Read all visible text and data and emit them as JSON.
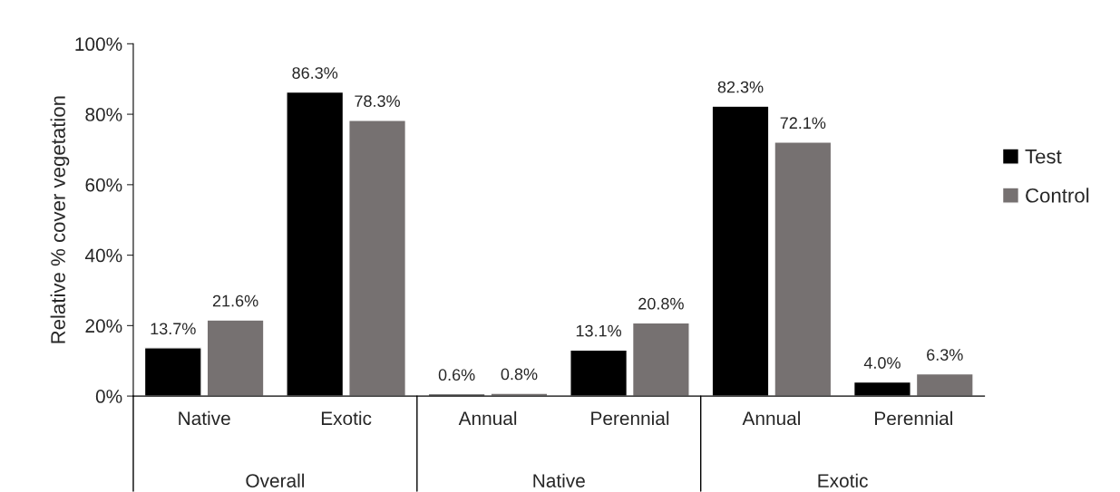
{
  "chart_data": {
    "type": "bar",
    "ylabel": "Relative % cover vegetation",
    "categories": [
      "Native",
      "Exotic",
      "Annual",
      "Perennial",
      "Annual",
      "Perennial"
    ],
    "series": [
      {
        "name": "Test",
        "color": "#000000",
        "values": [
          13.7,
          86.3,
          0.6,
          13.1,
          82.3,
          4.0
        ],
        "value_labels": [
          "13.7%",
          "86.3%",
          "0.6%",
          "13.1%",
          "82.3%",
          "4.0%"
        ]
      },
      {
        "name": "Control",
        "color": "#767171",
        "values": [
          21.6,
          78.3,
          0.8,
          20.8,
          72.1,
          6.3
        ],
        "value_labels": [
          "21.6%",
          "78.3%",
          "0.8%",
          "20.8%",
          "72.1%",
          "6.3%"
        ]
      }
    ],
    "annotations": [
      "Overall",
      "Native",
      "Exotic"
    ],
    "ylim": [
      0,
      100
    ],
    "yticks": [
      {
        "value": 0,
        "label": "0%"
      },
      {
        "value": 20,
        "label": "20%"
      },
      {
        "value": 40,
        "label": "40%"
      },
      {
        "value": 60,
        "label": "60%"
      },
      {
        "value": 80,
        "label": "80%"
      },
      {
        "value": 100,
        "label": "100%"
      }
    ],
    "grid": false,
    "legend": "right"
  }
}
